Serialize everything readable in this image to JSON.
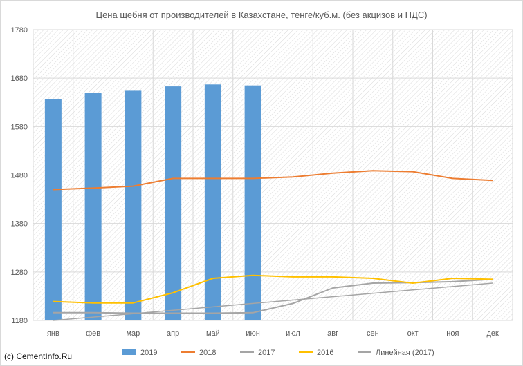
{
  "credit": "(c) CementInfo.Ru",
  "chart_data": {
    "type": "bar",
    "title": "Цена щебня от производителей в Казахстане, тенге/куб.м. (без акцизов и НДС)",
    "categories": [
      "янв",
      "фев",
      "мар",
      "апр",
      "май",
      "июн",
      "июл",
      "авг",
      "сен",
      "окт",
      "ноя",
      "дек"
    ],
    "ylim": [
      1180,
      1780
    ],
    "yticks": [
      "1180",
      "1280",
      "1380",
      "1480",
      "1580",
      "1680",
      "1780"
    ],
    "grid": true,
    "legend_position": "bottom",
    "series": [
      {
        "name": "2019",
        "kind": "bar",
        "color": "#5b9bd5",
        "values": [
          1637,
          1650,
          1654,
          1663,
          1667,
          1665,
          null,
          null,
          null,
          null,
          null,
          null
        ]
      },
      {
        "name": "2018",
        "kind": "line",
        "color": "#ed7d31",
        "values": [
          1450,
          1453,
          1457,
          1473,
          1473,
          1473,
          1476,
          1484,
          1489,
          1487,
          1473,
          1469
        ]
      },
      {
        "name": "2017",
        "kind": "line",
        "color": "#a5a5a5",
        "values": [
          1196,
          1196,
          1195,
          1195,
          1195,
          1196,
          1215,
          1247,
          1257,
          1258,
          1260,
          1265
        ]
      },
      {
        "name": "2016",
        "kind": "line",
        "color": "#ffc000",
        "values": [
          1219,
          1216,
          1216,
          1237,
          1267,
          1273,
          1270,
          1270,
          1267,
          1257,
          1267,
          1265
        ]
      },
      {
        "name": "Линейная (2017)",
        "kind": "trend",
        "color": "#a5a5a5",
        "values": [
          1180,
          1187,
          1194,
          1201,
          1208,
          1215,
          1222,
          1229,
          1236,
          1243,
          1250,
          1257
        ]
      }
    ]
  }
}
